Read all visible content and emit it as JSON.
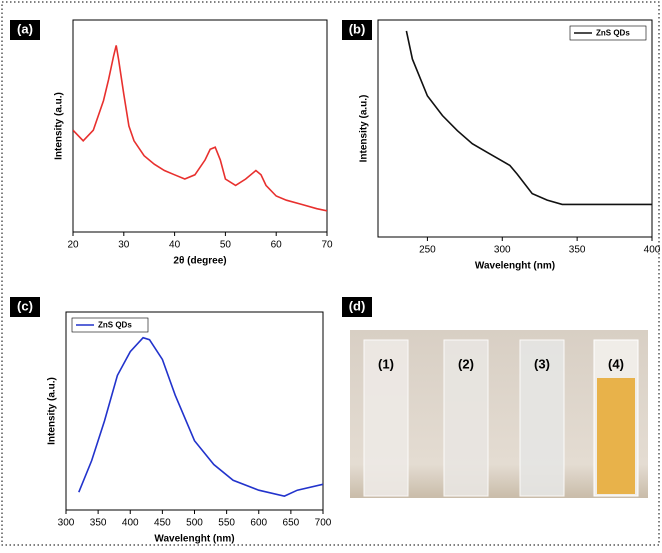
{
  "chart_data": [
    {
      "type": "line",
      "panel_label": "(a)",
      "xlabel": "2θ (degree)",
      "ylabel": "Intensity (a.u.)",
      "xlim": [
        20,
        70
      ],
      "xticks": [
        20,
        30,
        40,
        50,
        60,
        70
      ],
      "ylim": [
        0,
        100
      ],
      "x": [
        20,
        22,
        24,
        26,
        27,
        28,
        28.5,
        29,
        30,
        31,
        32,
        34,
        36,
        38,
        40,
        42,
        44,
        46,
        47,
        48,
        49,
        50,
        52,
        54,
        56,
        57,
        58,
        60,
        62,
        65,
        68,
        70
      ],
      "series": [
        {
          "color": "#e8302e",
          "values": [
            48,
            43,
            48,
            62,
            72,
            83,
            88,
            81,
            65,
            50,
            43,
            36,
            32,
            29,
            27,
            25,
            27,
            34,
            39,
            40,
            34,
            25,
            22,
            25,
            29,
            27,
            22,
            17,
            15,
            13,
            11,
            10
          ]
        }
      ]
    },
    {
      "type": "line",
      "panel_label": "(b)",
      "xlabel": "Wavelenght (nm)",
      "ylabel": "Intensity (a.u.)",
      "xlim": [
        217,
        400
      ],
      "xticks": [
        250,
        300,
        350,
        400
      ],
      "ylim": [
        0,
        100
      ],
      "legend": "upper right",
      "x": [
        236,
        240,
        250,
        260,
        270,
        280,
        290,
        300,
        305,
        310,
        320,
        330,
        340,
        350,
        400
      ],
      "series": [
        {
          "name": "ZnS QDs",
          "color": "#111111",
          "values": [
            95,
            82,
            65,
            56,
            49,
            43,
            39,
            35,
            33,
            29,
            20,
            17,
            15,
            15,
            15
          ]
        }
      ]
    },
    {
      "type": "line",
      "panel_label": "(c)",
      "xlabel": "Wavelenght (nm)",
      "ylabel": "Intensity (a.u.)",
      "xlim": [
        300,
        700
      ],
      "xticks": [
        300,
        350,
        400,
        450,
        500,
        550,
        600,
        650,
        700
      ],
      "ylim": [
        0,
        100
      ],
      "legend": "upper left",
      "x": [
        320,
        340,
        360,
        380,
        400,
        420,
        430,
        450,
        470,
        500,
        530,
        560,
        600,
        640,
        660,
        700
      ],
      "series": [
        {
          "name": "ZnS QDs",
          "color": "#2233cc",
          "values": [
            9,
            25,
            45,
            68,
            80,
            87,
            86,
            76,
            58,
            35,
            23,
            15,
            10,
            7,
            10,
            13
          ]
        }
      ]
    }
  ],
  "photo": {
    "panel_label": "(d)",
    "labels": [
      "(1)",
      "(2)",
      "(3)",
      "(4)"
    ]
  }
}
